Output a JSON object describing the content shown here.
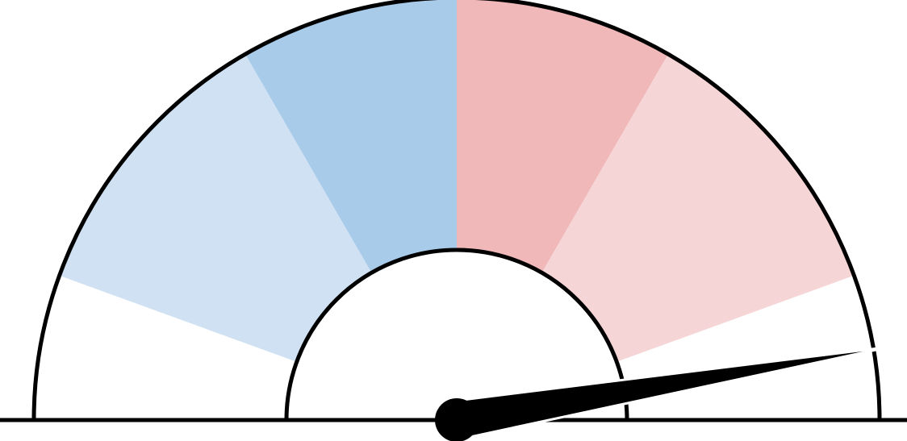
{
  "gauge": {
    "range_degrees": [
      0,
      180
    ],
    "segments": [
      {
        "name": "white-left",
        "from_deg": 160,
        "to_deg": 180,
        "color": "#ffffff"
      },
      {
        "name": "light-blue",
        "from_deg": 120,
        "to_deg": 160,
        "color": "#cfe1f3"
      },
      {
        "name": "blue",
        "from_deg": 90,
        "to_deg": 120,
        "color": "#a9cbea"
      },
      {
        "name": "red",
        "from_deg": 60,
        "to_deg": 90,
        "color": "#f0b8b8"
      },
      {
        "name": "light-red",
        "from_deg": 20,
        "to_deg": 60,
        "color": "#f6d5d7"
      },
      {
        "name": "white-right",
        "from_deg": 0,
        "to_deg": 20,
        "color": "#ffffff"
      }
    ],
    "needle_angle_deg": 9.6,
    "outline_color": "#000000"
  }
}
